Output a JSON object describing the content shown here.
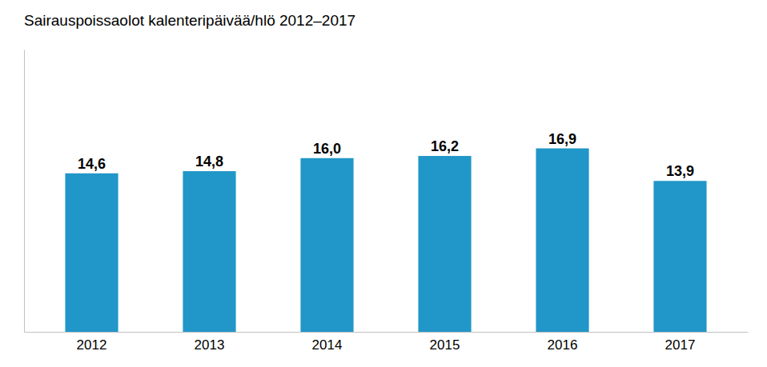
{
  "chart_data": {
    "type": "bar",
    "title": "Sairauspoissaolot kalenteripäivää/hlö 2012–2017",
    "categories": [
      "2012",
      "2013",
      "2014",
      "2015",
      "2016",
      "2017"
    ],
    "values": [
      14.6,
      14.8,
      16.0,
      16.2,
      16.9,
      13.9
    ],
    "value_labels": [
      "14,6",
      "14,8",
      "16,0",
      "16,2",
      "16,9",
      "13,9"
    ],
    "data_labels": true,
    "color": "#2196C8",
    "ylim": [
      0,
      26
    ],
    "grid": false,
    "tick_labels": "x"
  }
}
